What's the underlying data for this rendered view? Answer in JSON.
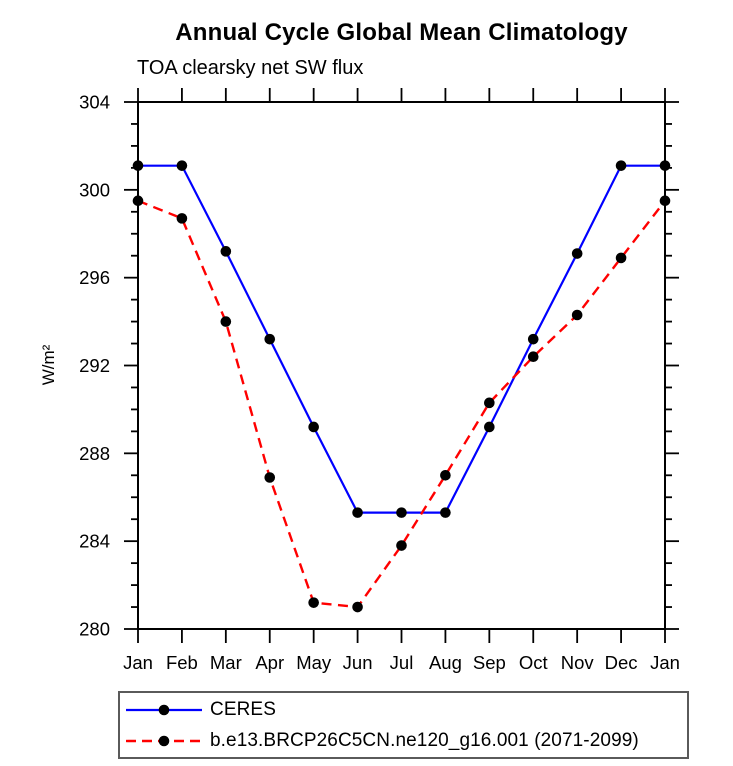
{
  "header": {
    "title": "Annual Cycle Global Mean Climatology",
    "subtitle": "TOA clearsky net SW flux"
  },
  "chart_data": {
    "type": "line",
    "title": "Annual Cycle Global Mean Climatology",
    "subtitle": "TOA clearsky net SW flux",
    "xlabel": "",
    "ylabel": "W/m²",
    "categories": [
      "Jan",
      "Feb",
      "Mar",
      "Apr",
      "May",
      "Jun",
      "Jul",
      "Aug",
      "Sep",
      "Oct",
      "Nov",
      "Dec",
      "Jan"
    ],
    "ylim": [
      280,
      304
    ],
    "ytick_major": [
      280,
      284,
      288,
      292,
      296,
      300,
      304
    ],
    "ytick_minor_step": 1,
    "grid": false,
    "legend_position": "bottom",
    "frame": true,
    "colors": {
      "axis": "#000000",
      "marker": "#000000",
      "ceres_line": "#0000ff",
      "model_line": "#ff0000",
      "legend_border": "#5a5a5a"
    },
    "series": [
      {
        "name": "CERES",
        "color": "#0000ff",
        "style": "solid",
        "marker": "circle",
        "marker_color": "#000000",
        "values": [
          301.1,
          301.1,
          297.2,
          293.2,
          289.2,
          285.3,
          285.3,
          285.3,
          289.2,
          293.2,
          297.1,
          301.1,
          301.1
        ]
      },
      {
        "name": "b.e13.BRCP26C5CN.ne120_g16.001 (2071-2099)",
        "color": "#ff0000",
        "style": "dashed",
        "marker": "circle",
        "marker_color": "#000000",
        "values": [
          299.5,
          298.7,
          294.0,
          286.9,
          281.2,
          281.0,
          283.8,
          287.0,
          290.3,
          292.4,
          294.3,
          296.9,
          299.5
        ]
      }
    ]
  }
}
